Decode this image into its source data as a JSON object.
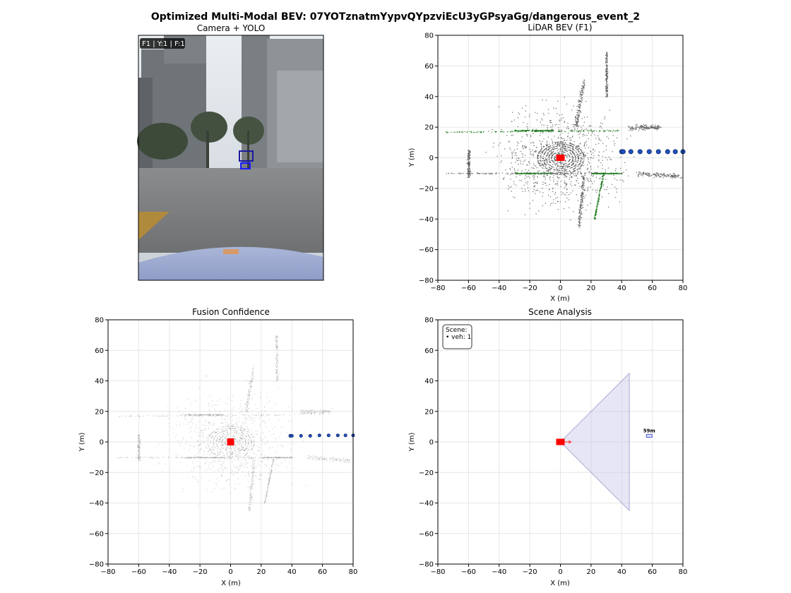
{
  "suptitle": "Optimized Multi-Modal BEV: 07YOTznatmYypvQYpzviEcU3yGPsyaGg/dangerous_event_2",
  "camera": {
    "title": "Camera + YOLO",
    "badge": "F1 | Y:1 | F:1",
    "detections": 2
  },
  "colors": {
    "ego": "#ff0000",
    "track": "#1f4fbf",
    "veg": "#1a7a1a",
    "points": "#555555",
    "fov": "#c8c8e6"
  },
  "chart_data": [
    {
      "id": "lidar",
      "type": "scatter",
      "title": "LiDAR BEV (F1)",
      "xlabel": "X (m)",
      "ylabel": "Y (m)",
      "xlim": [
        -80,
        80
      ],
      "ylim": [
        -80,
        80
      ],
      "ticks": [
        -80,
        -60,
        -40,
        -20,
        0,
        20,
        40,
        60,
        80
      ],
      "grid": true,
      "ego": {
        "x": 0,
        "y": 0
      },
      "trajectory": [
        {
          "x": 40,
          "y": 4
        },
        {
          "x": 41,
          "y": 4
        },
        {
          "x": 46,
          "y": 4
        },
        {
          "x": 52,
          "y": 4
        },
        {
          "x": 58,
          "y": 4
        },
        {
          "x": 64,
          "y": 4
        },
        {
          "x": 70,
          "y": 4
        },
        {
          "x": 75,
          "y": 4
        },
        {
          "x": 80,
          "y": 4
        }
      ]
    },
    {
      "id": "fusion",
      "type": "scatter",
      "title": "Fusion Confidence",
      "xlabel": "X (m)",
      "ylabel": "Y (m)",
      "xlim": [
        -80,
        80
      ],
      "ylim": [
        -80,
        80
      ],
      "ticks": [
        -80,
        -60,
        -40,
        -20,
        0,
        20,
        40,
        60,
        80
      ],
      "grid": true,
      "ego": {
        "x": 0,
        "y": 0
      },
      "trajectory": [
        {
          "x": 39,
          "y": 4
        },
        {
          "x": 40,
          "y": 4
        },
        {
          "x": 46,
          "y": 4
        },
        {
          "x": 52,
          "y": 4
        },
        {
          "x": 58,
          "y": 4.3
        },
        {
          "x": 64,
          "y": 4.3
        },
        {
          "x": 70,
          "y": 4.3
        },
        {
          "x": 75,
          "y": 4.3
        },
        {
          "x": 80,
          "y": 4.3
        }
      ]
    },
    {
      "id": "scene",
      "type": "scatter",
      "title": "Scene Analysis",
      "xlabel": "X (m)",
      "ylabel": "Y (m)",
      "xlim": [
        -80,
        80
      ],
      "ylim": [
        -80,
        80
      ],
      "ticks": [
        -80,
        -60,
        -40,
        -20,
        0,
        20,
        40,
        60,
        80
      ],
      "grid": true,
      "ego": {
        "x": 0,
        "y": 0
      },
      "fov": {
        "apex": [
          0,
          0
        ],
        "far_x": 45,
        "half_width": 45
      },
      "vehicles": [
        {
          "x": 58,
          "y": 4,
          "label": "59m"
        }
      ],
      "legend_title": "Scene:",
      "legend_items": [
        "• veh: 1"
      ],
      "legend_loc": "upper left"
    }
  ]
}
